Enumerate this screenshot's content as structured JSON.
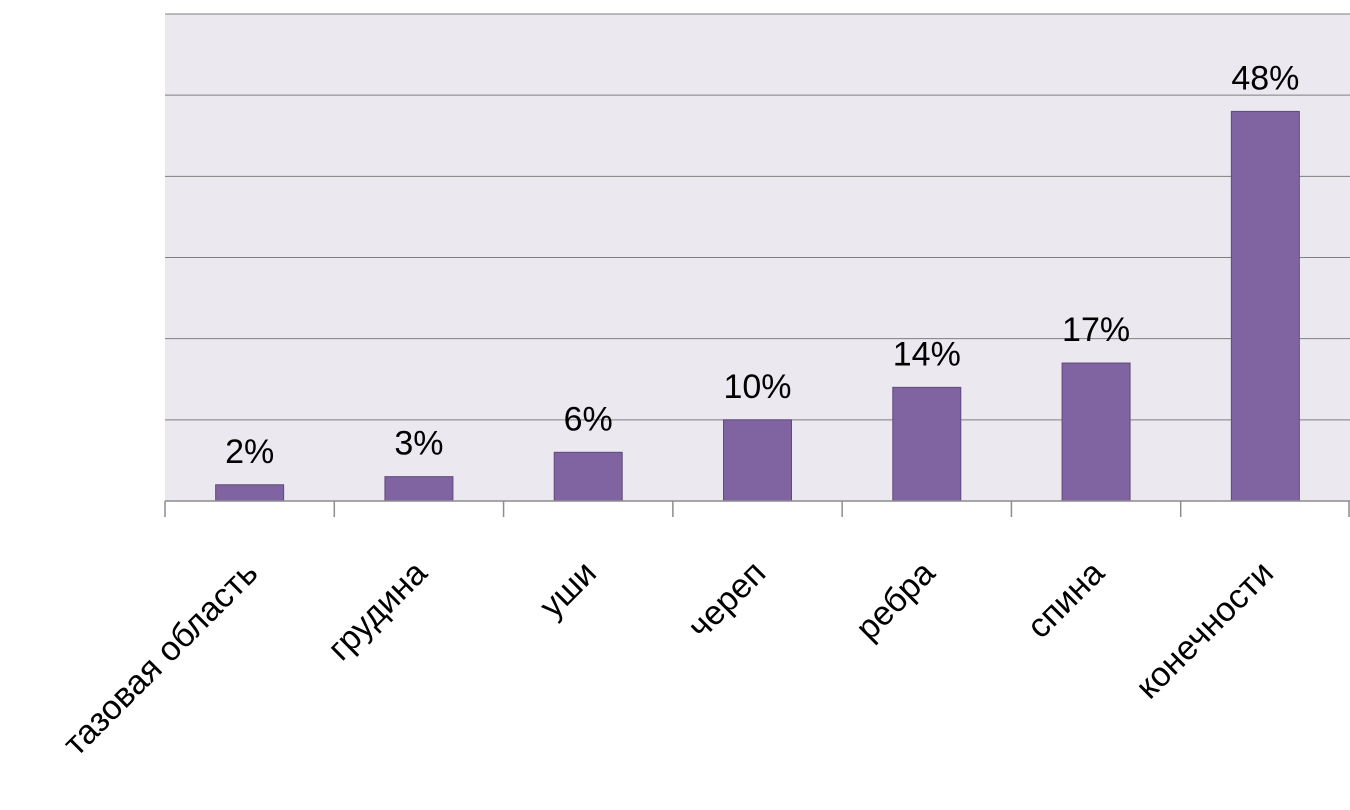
{
  "chart_data": {
    "type": "bar",
    "title": "",
    "xlabel": "",
    "ylabel": "",
    "categories": [
      "тазовая область",
      "грудина",
      "уши",
      "череп",
      "ребра",
      "спина",
      "конечности"
    ],
    "values": [
      2,
      3,
      6,
      10,
      14,
      17,
      48
    ],
    "data_labels": [
      "2%",
      "3%",
      "6%",
      "10%",
      "14%",
      "17%",
      "48%"
    ],
    "ylim": [
      0,
      60
    ],
    "y_major_step": 10,
    "grid": true,
    "legend": "none",
    "colors": {
      "bar": "#8064a2",
      "bar_edge": "#5f4a7d",
      "plot_background": "#ebe8f0",
      "gridline": "#7f7f7f",
      "axis": "#8c8c8c"
    }
  }
}
